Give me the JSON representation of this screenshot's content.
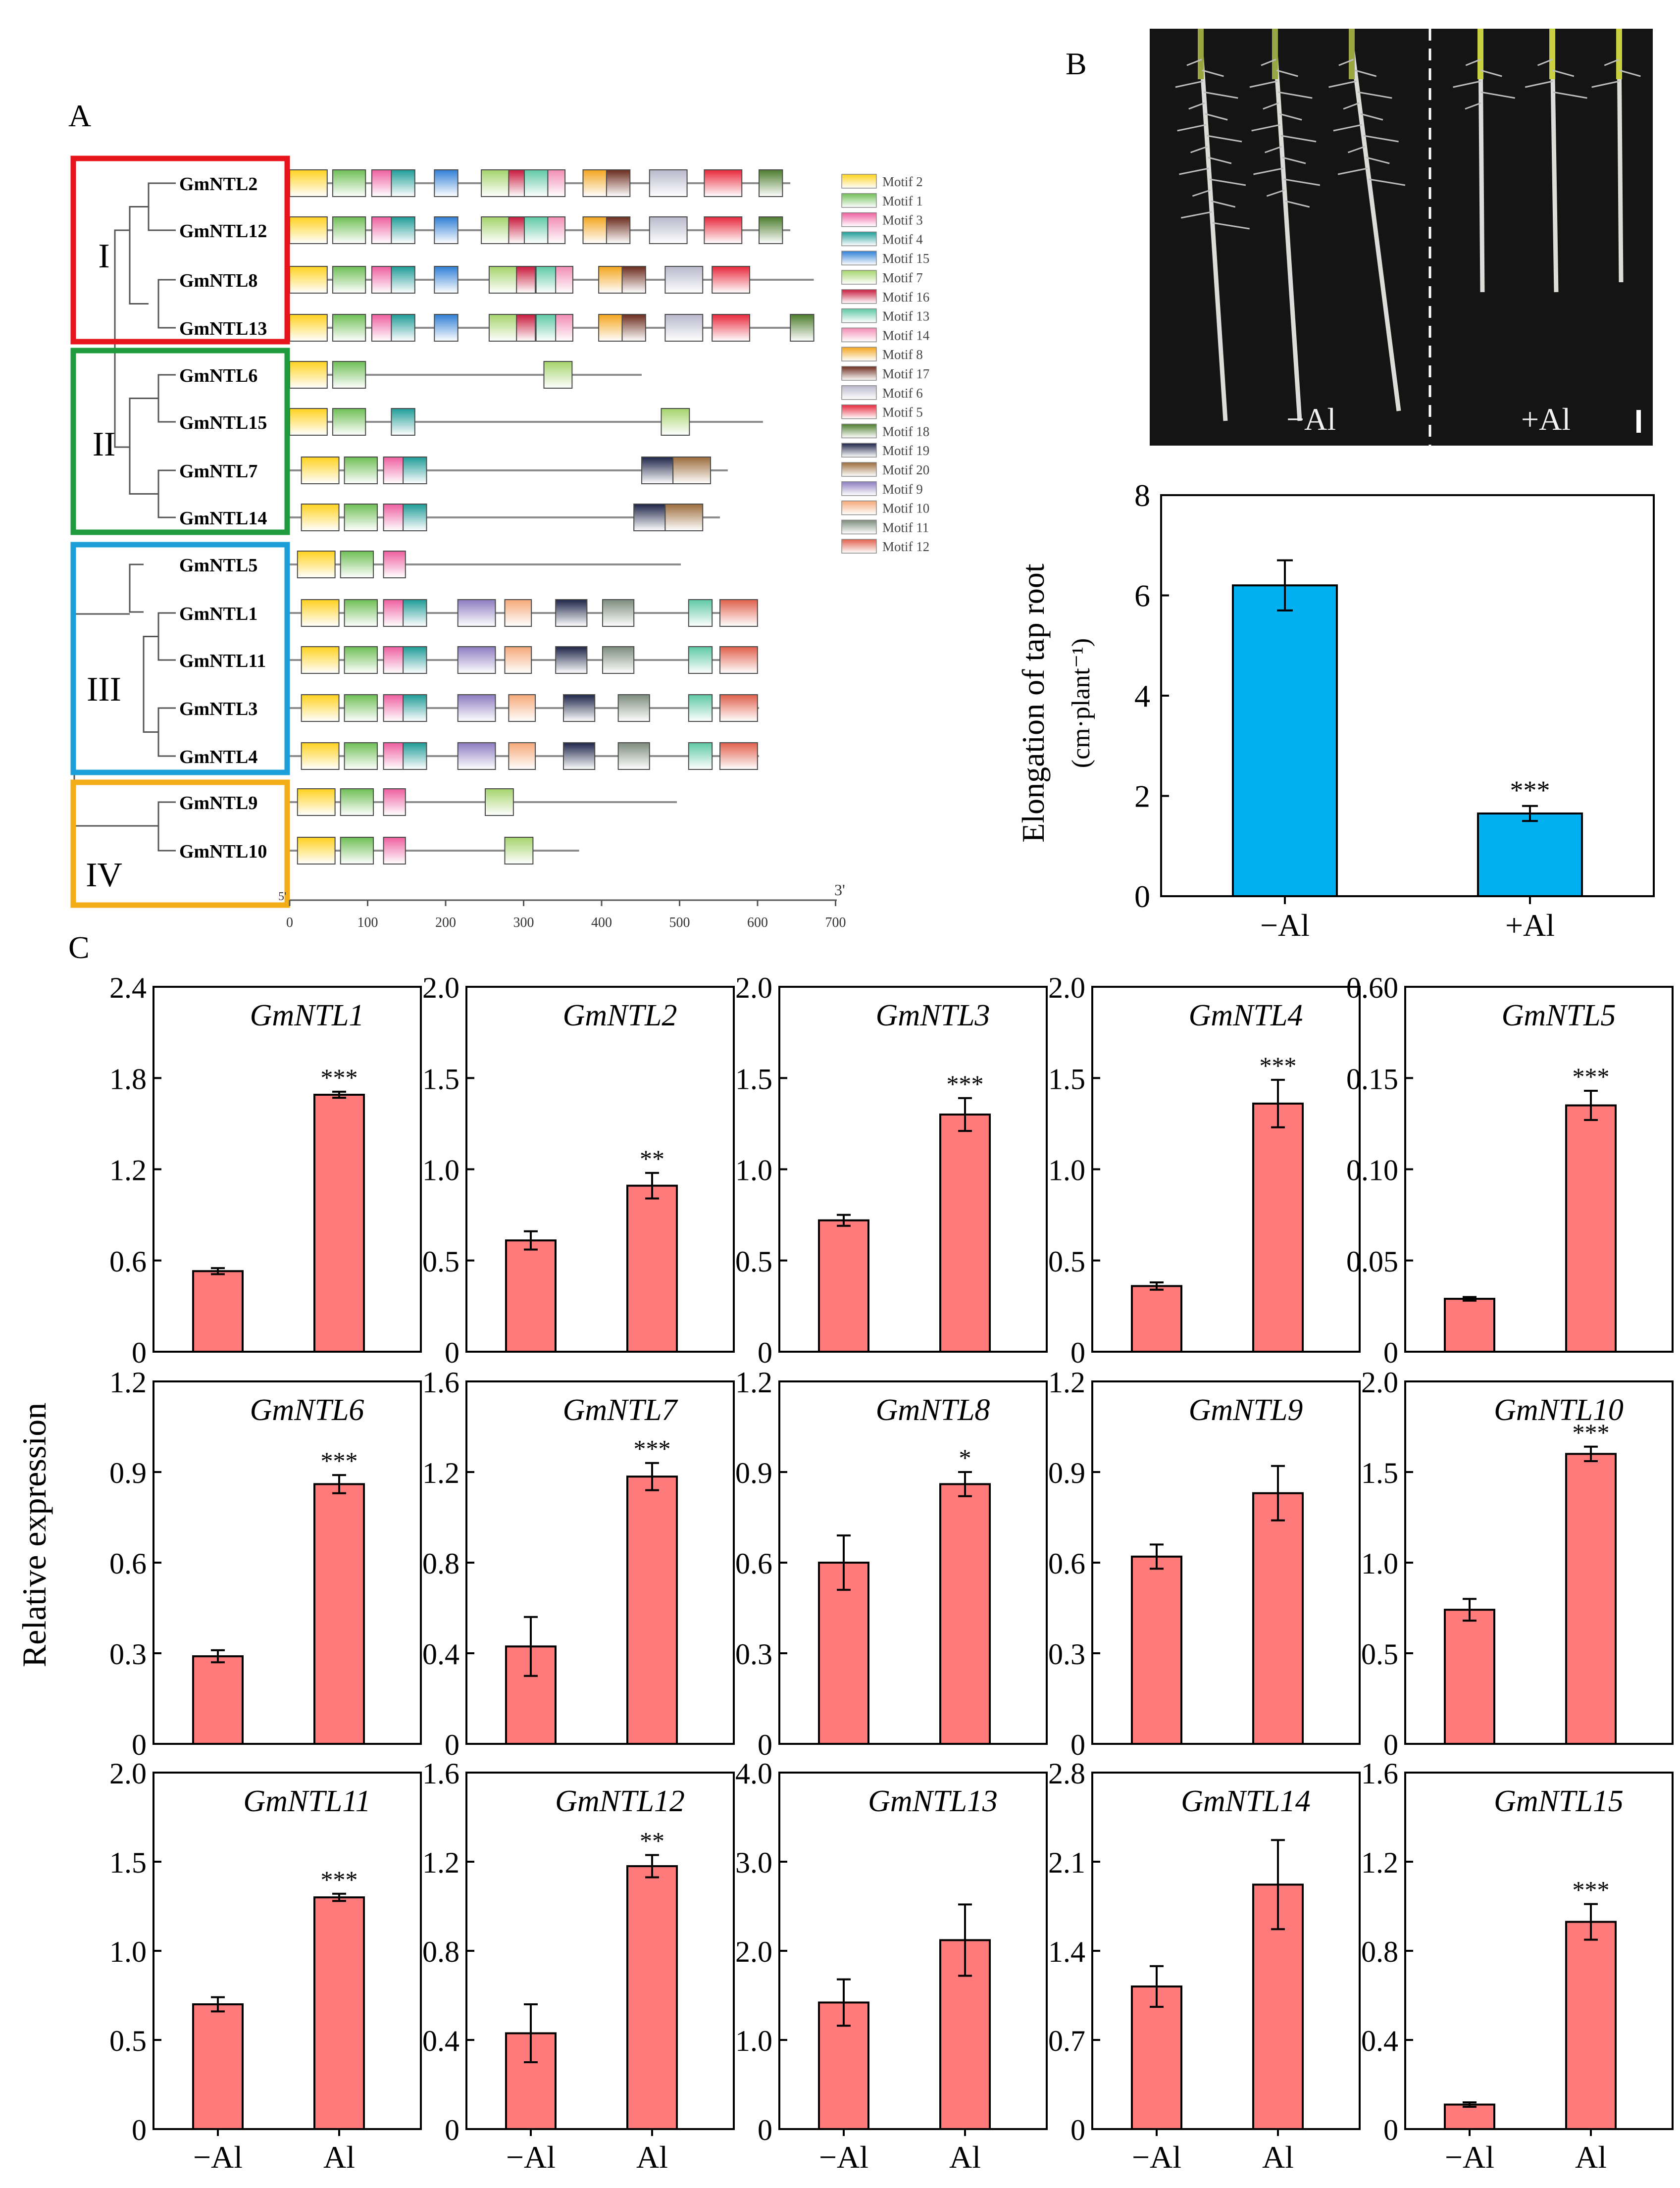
{
  "panels": {
    "a": "A",
    "b": "B",
    "c": "C"
  },
  "colors": {
    "group_I": "#e8141c",
    "group_II": "#1f9a3c",
    "group_III": "#1c9fd8",
    "group_IV": "#f2ac14",
    "bar_c": "#ff7b7b",
    "bar_b": "#00b0f0",
    "photo_bg": "#141414"
  },
  "motif_panel": {
    "groups": [
      {
        "name": "I",
        "genes": [
          "GmNTL2",
          "GmNTL12",
          "GmNTL8",
          "GmNTL13"
        ]
      },
      {
        "name": "II",
        "genes": [
          "GmNTL6",
          "GmNTL15",
          "GmNTL7",
          "GmNTL14"
        ]
      },
      {
        "name": "III",
        "genes": [
          "GmNTL5",
          "GmNTL1",
          "GmNTL11",
          "GmNTL3",
          "GmNTL4"
        ]
      },
      {
        "name": "IV",
        "genes": [
          "GmNTL9",
          "GmNTL10"
        ]
      }
    ],
    "legend": [
      {
        "label": "Motif 2",
        "color": "#ffd21f"
      },
      {
        "label": "Motif 1",
        "color": "#6fbf56"
      },
      {
        "label": "Motif 3",
        "color": "#ee5fa0"
      },
      {
        "label": "Motif 4",
        "color": "#1e9c97"
      },
      {
        "label": "Motif 15",
        "color": "#2f7fd6"
      },
      {
        "label": "Motif 7",
        "color": "#a4d46b"
      },
      {
        "label": "Motif 16",
        "color": "#c8193c"
      },
      {
        "label": "Motif 13",
        "color": "#5ec8a4"
      },
      {
        "label": "Motif 14",
        "color": "#f28cb4"
      },
      {
        "label": "Motif 8",
        "color": "#f3a51e"
      },
      {
        "label": "Motif 17",
        "color": "#6b2b1c"
      },
      {
        "label": "Motif 6",
        "color": "#b8b8cc"
      },
      {
        "label": "Motif 5",
        "color": "#e8283c"
      },
      {
        "label": "Motif 18",
        "color": "#4c7c2c"
      },
      {
        "label": "Motif 19",
        "color": "#1c2448"
      },
      {
        "label": "Motif 20",
        "color": "#9c6c3c"
      },
      {
        "label": "Motif 9",
        "color": "#8c7cc0"
      },
      {
        "label": "Motif 10",
        "color": "#f5a878"
      },
      {
        "label": "Motif 11",
        "color": "#7c8c7c"
      },
      {
        "label": "Motif 12",
        "color": "#e0604c"
      }
    ],
    "end_label_5": "5'",
    "end_label_3": "3'",
    "axis_ticks": [
      "0",
      "100",
      "200",
      "300",
      "400",
      "500",
      "600",
      "700"
    ]
  },
  "photo": {
    "minus_label": "−Al",
    "plus_label": "+Al"
  },
  "chart_data": [
    {
      "id": "tap_root",
      "type": "bar",
      "categories": [
        "−Al",
        "+Al"
      ],
      "values": [
        6.2,
        1.65
      ],
      "errors": [
        0.5,
        0.15
      ],
      "significance": [
        "",
        "***"
      ],
      "ylim": [
        0,
        8
      ],
      "yticks": [
        "0",
        "2",
        "4",
        "6",
        "8"
      ],
      "ylabel": "Elongation of tap root",
      "ylabel_unit": "(cm·plant⁻¹)"
    },
    {
      "id": "relative_expression",
      "type": "bar",
      "ylabel": "Relative expression",
      "categories": [
        "−Al",
        "Al"
      ],
      "genes": [
        {
          "gene": "GmNTL1",
          "values": [
            0.53,
            1.69
          ],
          "errors": [
            0.02,
            0.02
          ],
          "sig": "***",
          "ylim": [
            0,
            2.4
          ],
          "yticks": [
            "0",
            "0.6",
            "1.2",
            "1.8",
            "2.4"
          ]
        },
        {
          "gene": "GmNTL2",
          "values": [
            0.61,
            0.91
          ],
          "errors": [
            0.05,
            0.07
          ],
          "sig": "**",
          "ylim": [
            0,
            2.0
          ],
          "yticks": [
            "0",
            "0.5",
            "1.0",
            "1.5",
            "2.0"
          ]
        },
        {
          "gene": "GmNTL3",
          "values": [
            0.72,
            1.3
          ],
          "errors": [
            0.03,
            0.09
          ],
          "sig": "***",
          "ylim": [
            0,
            2.0
          ],
          "yticks": [
            "0",
            "0.5",
            "1.0",
            "1.5",
            "2.0"
          ]
        },
        {
          "gene": "GmNTL4",
          "values": [
            0.36,
            1.36
          ],
          "errors": [
            0.02,
            0.13
          ],
          "sig": "***",
          "ylim": [
            0,
            2.0
          ],
          "yticks": [
            "0",
            "0.5",
            "1.0",
            "1.5",
            "2.0"
          ]
        },
        {
          "gene": "GmNTL5",
          "values": [
            0.029,
            0.135
          ],
          "errors": [
            0.001,
            0.008
          ],
          "sig": "***",
          "ylim": [
            0,
            0.6
          ],
          "yticks": [
            "0",
            "0.05",
            "0.10",
            "0.15",
            "0.60"
          ]
        },
        {
          "gene": "GmNTL6",
          "values": [
            0.29,
            0.86
          ],
          "errors": [
            0.02,
            0.03
          ],
          "sig": "***",
          "ylim": [
            0,
            1.2
          ],
          "yticks": [
            "0",
            "0.3",
            "0.6",
            "0.9",
            "1.2"
          ]
        },
        {
          "gene": "GmNTL7",
          "values": [
            0.43,
            1.18
          ],
          "errors": [
            0.13,
            0.06
          ],
          "sig": "***",
          "ylim": [
            0,
            1.6
          ],
          "yticks": [
            "0",
            "0.4",
            "0.8",
            "1.2",
            "1.6"
          ]
        },
        {
          "gene": "GmNTL8",
          "values": [
            0.6,
            0.86
          ],
          "errors": [
            0.09,
            0.04
          ],
          "sig": "*",
          "ylim": [
            0,
            1.2
          ],
          "yticks": [
            "0",
            "0.3",
            "0.6",
            "0.9",
            "1.2"
          ]
        },
        {
          "gene": "GmNTL9",
          "values": [
            0.62,
            0.83
          ],
          "errors": [
            0.04,
            0.09
          ],
          "sig": "",
          "ylim": [
            0,
            1.2
          ],
          "yticks": [
            "0",
            "0.3",
            "0.6",
            "0.9",
            "1.2"
          ]
        },
        {
          "gene": "GmNTL10",
          "values": [
            0.74,
            1.6
          ],
          "errors": [
            0.06,
            0.04
          ],
          "sig": "***",
          "ylim": [
            0,
            2.0
          ],
          "yticks": [
            "0",
            "0.5",
            "1.0",
            "1.5",
            "2.0"
          ]
        },
        {
          "gene": "GmNTL11",
          "values": [
            0.7,
            1.3
          ],
          "errors": [
            0.04,
            0.02
          ],
          "sig": "***",
          "ylim": [
            0,
            2.0
          ],
          "yticks": [
            "0",
            "0.5",
            "1.0",
            "1.5",
            "2.0"
          ]
        },
        {
          "gene": "GmNTL12",
          "values": [
            0.43,
            1.18
          ],
          "errors": [
            0.13,
            0.05
          ],
          "sig": "**",
          "ylim": [
            0,
            1.6
          ],
          "yticks": [
            "0",
            "0.4",
            "0.8",
            "1.2",
            "1.6"
          ]
        },
        {
          "gene": "GmNTL13",
          "values": [
            1.42,
            2.12
          ],
          "errors": [
            0.26,
            0.4
          ],
          "sig": "",
          "ylim": [
            0,
            4.0
          ],
          "yticks": [
            "0",
            "1.0",
            "2.0",
            "3.0",
            "4.0"
          ]
        },
        {
          "gene": "GmNTL14",
          "values": [
            1.12,
            1.92
          ],
          "errors": [
            0.16,
            0.35
          ],
          "sig": "",
          "ylim": [
            0,
            2.8
          ],
          "yticks": [
            "0",
            "0.7",
            "1.4",
            "2.1",
            "2.8"
          ]
        },
        {
          "gene": "GmNTL15",
          "values": [
            0.11,
            0.93
          ],
          "errors": [
            0.01,
            0.08
          ],
          "sig": "***",
          "ylim": [
            0,
            1.6
          ],
          "yticks": [
            "0",
            "0.4",
            "0.8",
            "1.2",
            "1.6"
          ]
        }
      ]
    }
  ]
}
